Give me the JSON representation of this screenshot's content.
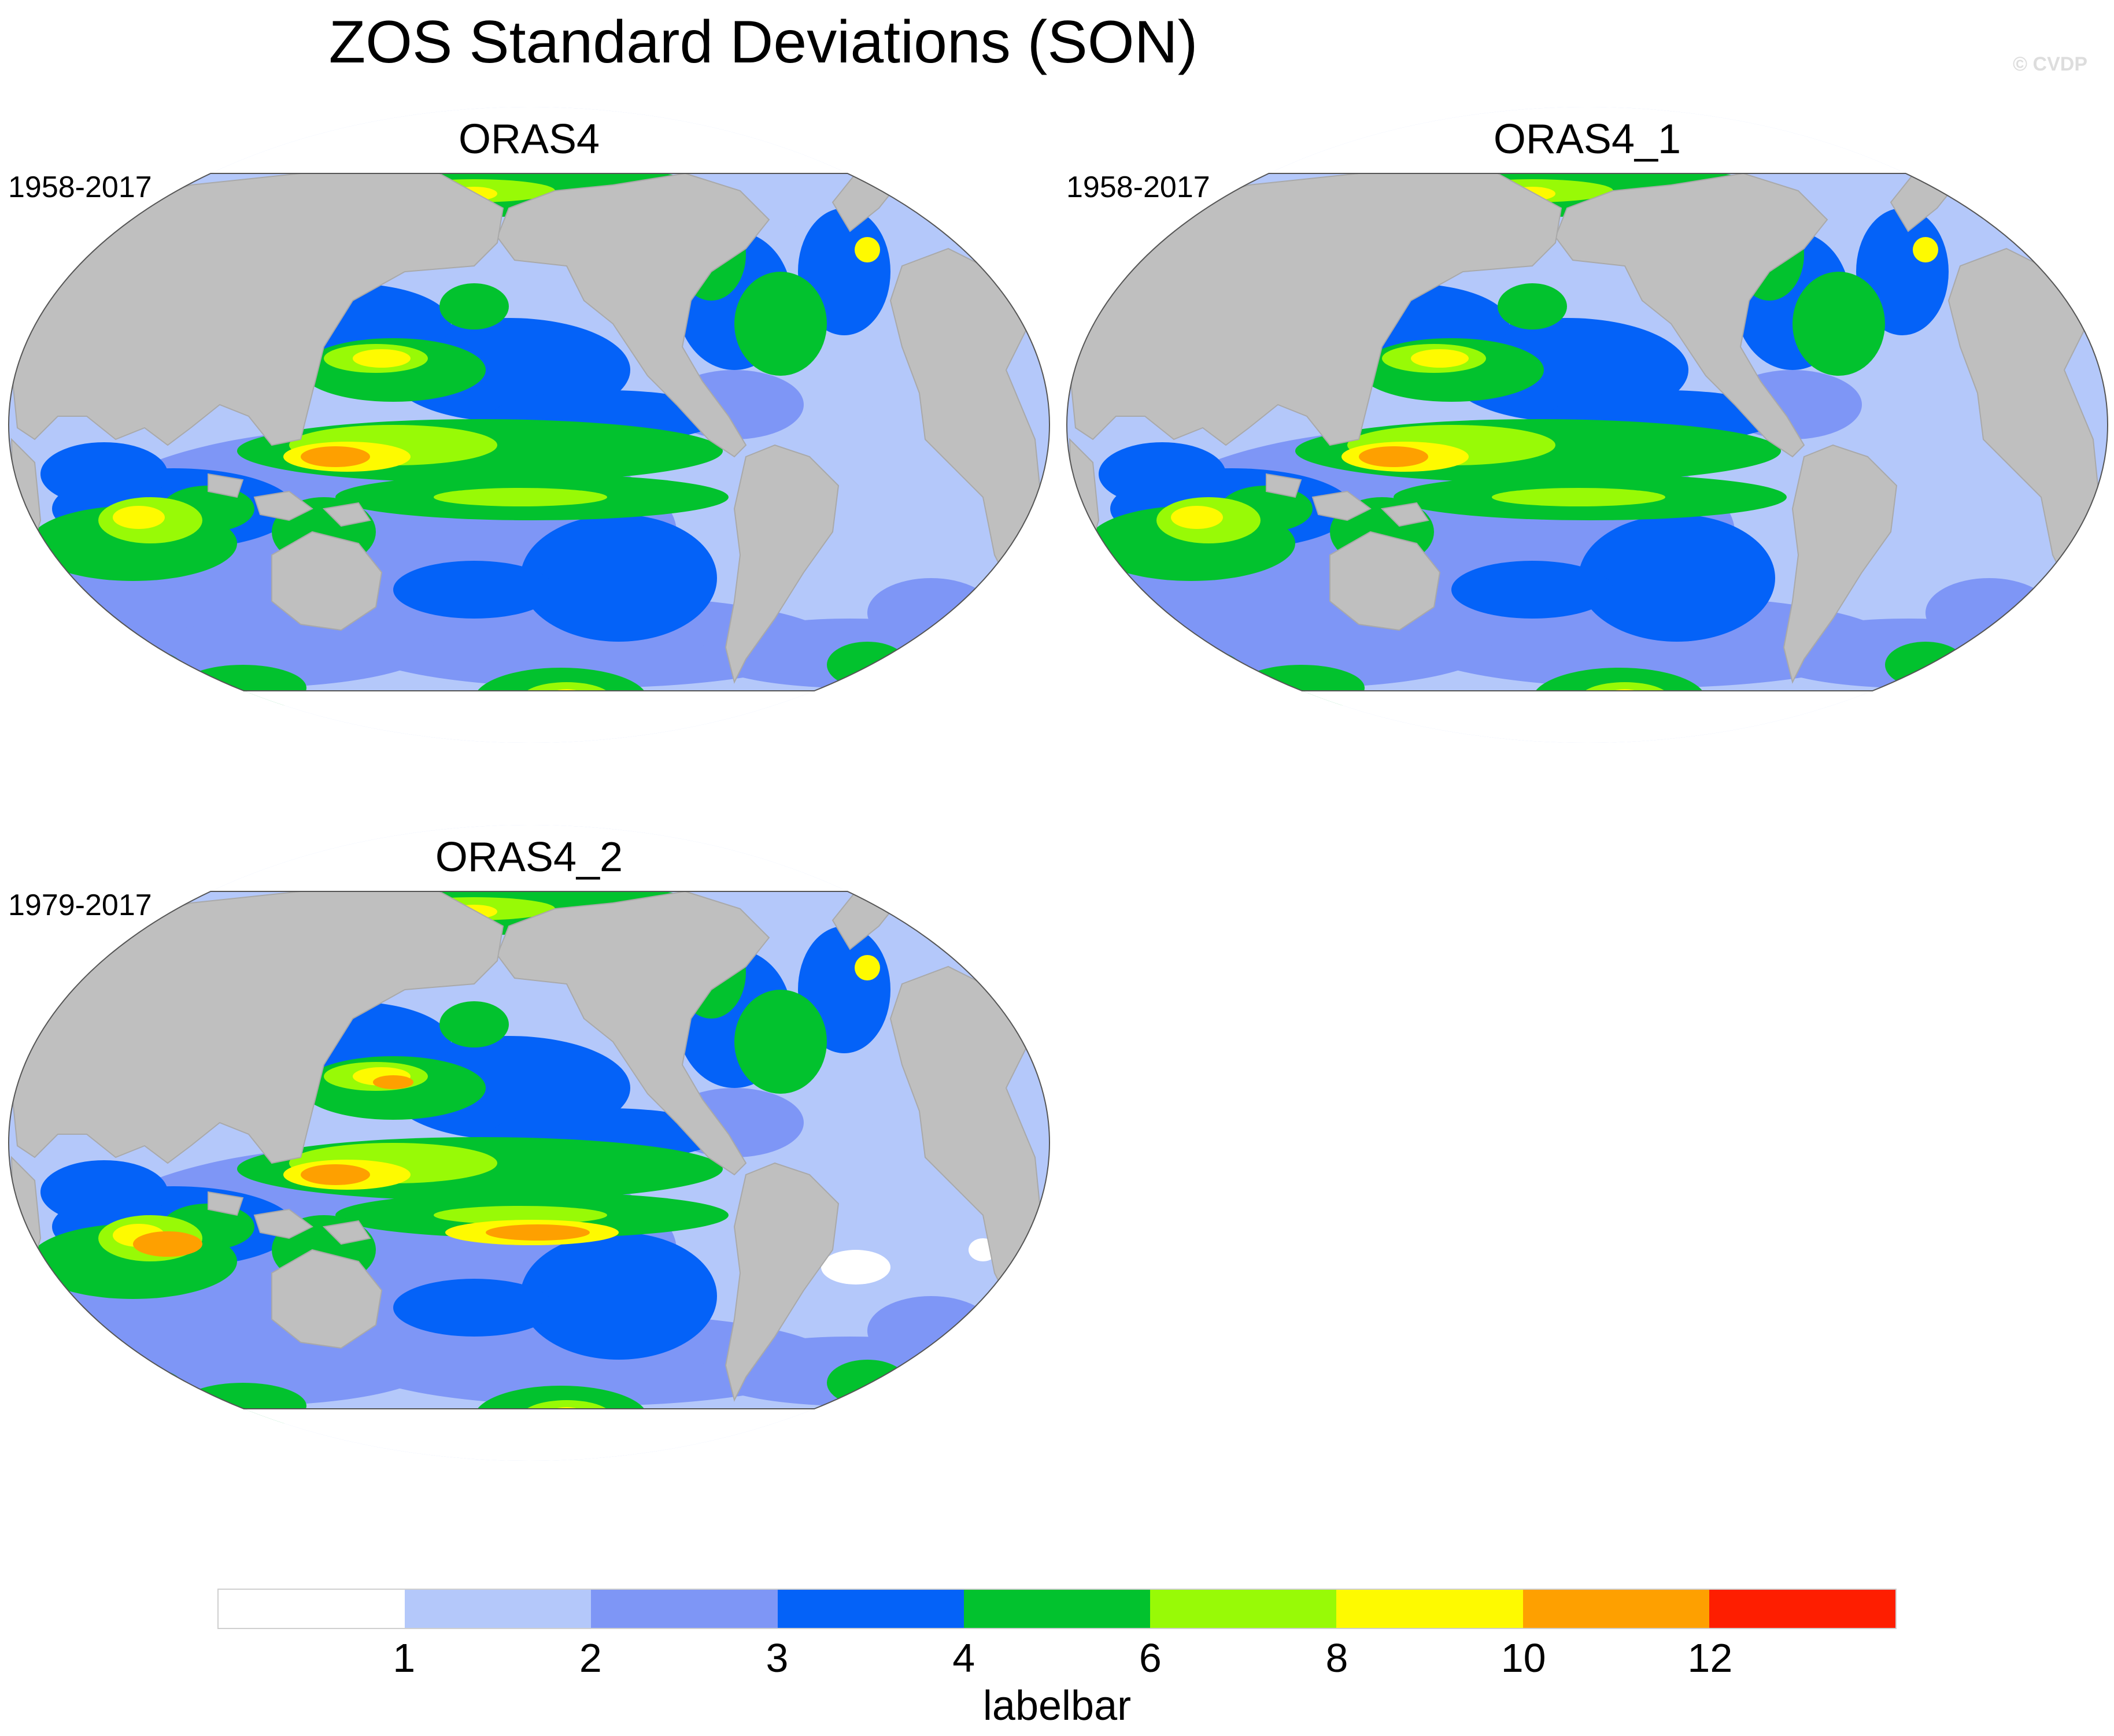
{
  "title": "ZOS Standard Deviations (SON)",
  "watermark": "© CVDP",
  "panels": [
    {
      "name": "ORAS4",
      "years": "1958-2017",
      "variant": 0
    },
    {
      "name": "ORAS4_1",
      "years": "1958-2017",
      "variant": 0
    },
    {
      "name": "ORAS4_2",
      "years": "1979-2017",
      "variant": 1
    }
  ],
  "colorbar": {
    "label": "labelbar",
    "levels": [
      "1",
      "2",
      "3",
      "4",
      "6",
      "8",
      "10",
      "12"
    ],
    "colors": [
      "#ffffff",
      "#b4c8fa",
      "#7e96f6",
      "#0462f8",
      "#02c22e",
      "#98fa06",
      "#fefa00",
      "#fea000",
      "#fe1e00"
    ],
    "land_color": "#bfbfbf"
  },
  "chart_data": {
    "type": "heatmap",
    "title": "ZOS Standard Deviations (SON)",
    "colorbar_levels": [
      1,
      2,
      3,
      4,
      6,
      8,
      10,
      12
    ],
    "panels": [
      "ORAS4",
      "ORAS4_1",
      "ORAS4_2"
    ],
    "periods": [
      "1958-2017",
      "1958-2017",
      "1979-2017"
    ],
    "colorbar_label": "labelbar"
  }
}
